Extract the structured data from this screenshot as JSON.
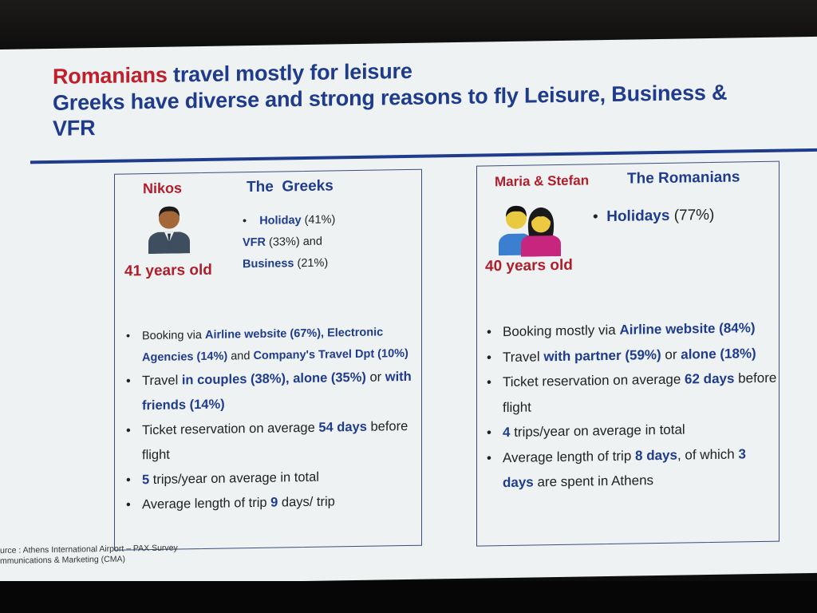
{
  "slide": {
    "title": {
      "line1_highlight": "Romanians",
      "line1_rest": " travel mostly for leisure",
      "line2": "Greeks have diverse and strong reasons to fly Leisure, Business & VFR"
    },
    "greeks": {
      "persona_name": "Nikos",
      "group": "The  Greeks",
      "age": "41 years old",
      "avatar_icon": "man-avatar-icon",
      "reasons": {
        "holiday_label": "Holiday",
        "holiday_value": " (41%)",
        "vfr_label": "VFR",
        "vfr_value": " (33%) and",
        "business_label": "Business",
        "business_value": " (21%)"
      },
      "bullets": {
        "b1": {
          "t1": "Booking via ",
          "h1": "Airline website (67%), Electronic Agencies (14%)",
          "t2": " and ",
          "h2": "Company's Travel Dpt (10%)"
        },
        "b2": {
          "t1": "Travel ",
          "h1": "in couples (38%), alone (35%)",
          "t2": " or ",
          "h2": "with friends (14%)"
        },
        "b3": {
          "t1": "Ticket reservation on average ",
          "h1": "54 days",
          "t2": " before flight"
        },
        "b4": {
          "h1": "5",
          "t1": " trips/year on average in total"
        },
        "b5": {
          "t1": "Average length of trip ",
          "h1": "9",
          "t2": " days/ trip"
        }
      }
    },
    "romanians": {
      "persona_name": "Maria & Stefan",
      "group": "The Romanians",
      "age": "40 years old",
      "avatar_icon": "couple-avatar-icon",
      "reason": {
        "label": "Holidays",
        "value": " (77%)"
      },
      "bullets": {
        "b1": {
          "t1": "Booking mostly via ",
          "h1": "Airline website (84%)"
        },
        "b2": {
          "t1": "Travel ",
          "h1": "with partner (59%)",
          "t2": " or ",
          "h2": "alone (18%)"
        },
        "b3": {
          "t1": "Ticket reservation on average ",
          "h1": "62 days",
          "t2": " before flight"
        },
        "b4": {
          "h1": "4",
          "t1": " trips/year on average in total"
        },
        "b5": {
          "t1": "Average length of trip ",
          "h1": "8 days",
          "t2": ", of which ",
          "h2": "3 days",
          "t3": " are spent in Athens"
        }
      }
    },
    "source": {
      "line1": "urce : Athens International Airport – PAX Survey",
      "line2": "mmunications & Marketing (CMA)"
    }
  },
  "colors": {
    "title_blue": "#1f3b8c",
    "accent_red": "#c0202c",
    "slide_bg": "#eef2f2"
  }
}
